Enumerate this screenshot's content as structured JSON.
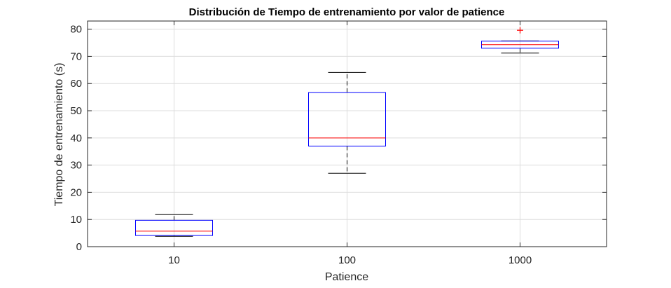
{
  "chart_data": {
    "type": "boxplot",
    "title": "Distribución de Tiempo de entrenamiento por valor de patience",
    "xlabel": "Patience",
    "ylabel": "Tiempo de entrenamiento (s)",
    "categories": [
      "10",
      "100",
      "1000"
    ],
    "ylim": [
      0,
      83
    ],
    "yticks": [
      0,
      10,
      20,
      30,
      40,
      50,
      60,
      70,
      80
    ],
    "grid": true,
    "boxes": [
      {
        "category": "10",
        "whisker_low": 3.8,
        "q1": 4.1,
        "median": 5.7,
        "q3": 9.7,
        "whisker_high": 11.8,
        "outliers": []
      },
      {
        "category": "100",
        "whisker_low": 27.0,
        "q1": 37.0,
        "median": 40.0,
        "q3": 56.7,
        "whisker_high": 64.1,
        "outliers": []
      },
      {
        "category": "1000",
        "whisker_low": 71.2,
        "q1": 73.0,
        "median": 74.3,
        "q3": 75.6,
        "whisker_high": 75.7,
        "outliers": [
          79.6
        ]
      }
    ],
    "colors": {
      "box": "#0000ff",
      "median": "#ff0000",
      "whisker": "#000000",
      "outlier": "#ff0000",
      "grid": "#dcdcdc",
      "axis": "#262626"
    }
  }
}
